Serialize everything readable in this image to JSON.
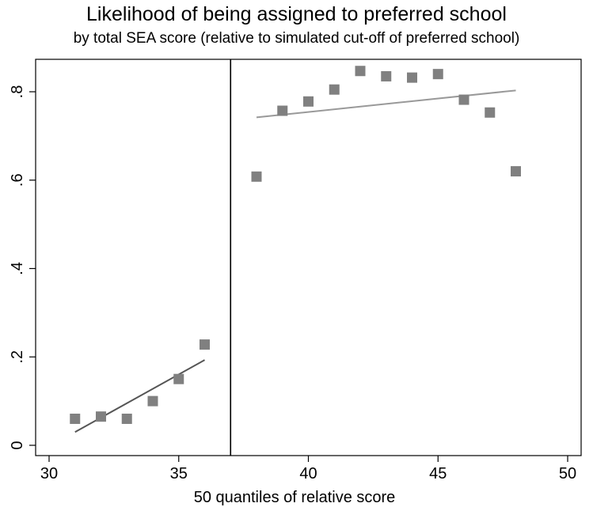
{
  "chart_data": {
    "type": "scatter",
    "title": "Likelihood of being assigned to preferred school",
    "subtitle": "by total SEA score (relative to simulated cut-off of preferred school)",
    "xlabel": "50 quantiles of relative score",
    "ylabel": "",
    "xlim": [
      30,
      50
    ],
    "ylim": [
      0,
      0.85
    ],
    "xticks": [
      30,
      35,
      40,
      45,
      50
    ],
    "xtick_labels": [
      "30",
      "35",
      "40",
      "45",
      "50"
    ],
    "yticks": [
      0,
      0.2,
      0.4,
      0.6,
      0.8
    ],
    "ytick_labels": [
      "0",
      ".2",
      ".4",
      ".6",
      ".8"
    ],
    "cutoff_x": 37,
    "grid": false,
    "series": [
      {
        "marker": "square",
        "color": "#808080",
        "x": [
          31,
          32,
          33,
          34,
          35,
          36,
          38,
          39,
          40,
          41,
          42,
          43,
          44,
          45,
          46,
          47,
          48
        ],
        "y": [
          0.06,
          0.065,
          0.06,
          0.1,
          0.15,
          0.228,
          0.608,
          0.757,
          0.778,
          0.805,
          0.847,
          0.835,
          0.832,
          0.84,
          0.782,
          0.753,
          0.62
        ]
      }
    ],
    "fit_lines": [
      {
        "x": [
          31,
          36
        ],
        "y": [
          0.03,
          0.193
        ],
        "color": "#555555"
      },
      {
        "x": [
          38,
          48
        ],
        "y": [
          0.742,
          0.803
        ],
        "color": "#999999"
      }
    ]
  }
}
